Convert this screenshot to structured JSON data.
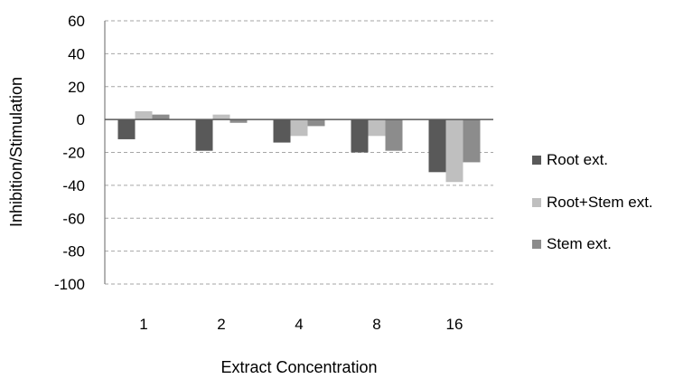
{
  "chart_data": {
    "type": "bar",
    "title": "",
    "xlabel": "Extract Concentration",
    "ylabel": "Inhibition/Stimulation",
    "categories": [
      "1",
      "2",
      "4",
      "8",
      "16"
    ],
    "ylim": [
      -100,
      60
    ],
    "yticks": [
      60,
      40,
      20,
      0,
      -20,
      -40,
      -60,
      -80,
      -100
    ],
    "grid": true,
    "legend_position": "right",
    "series": [
      {
        "name": "Root ext.",
        "color": "#595959",
        "values": [
          -12,
          -19,
          -14,
          -20,
          -32
        ]
      },
      {
        "name": "Root+Stem ext.",
        "color": "#bfbfbf",
        "values": [
          5,
          3,
          -10,
          -10,
          -38
        ]
      },
      {
        "name": "Stem ext.",
        "color": "#8c8c8c",
        "values": [
          3,
          -2,
          -4,
          -19,
          -26
        ]
      }
    ]
  }
}
